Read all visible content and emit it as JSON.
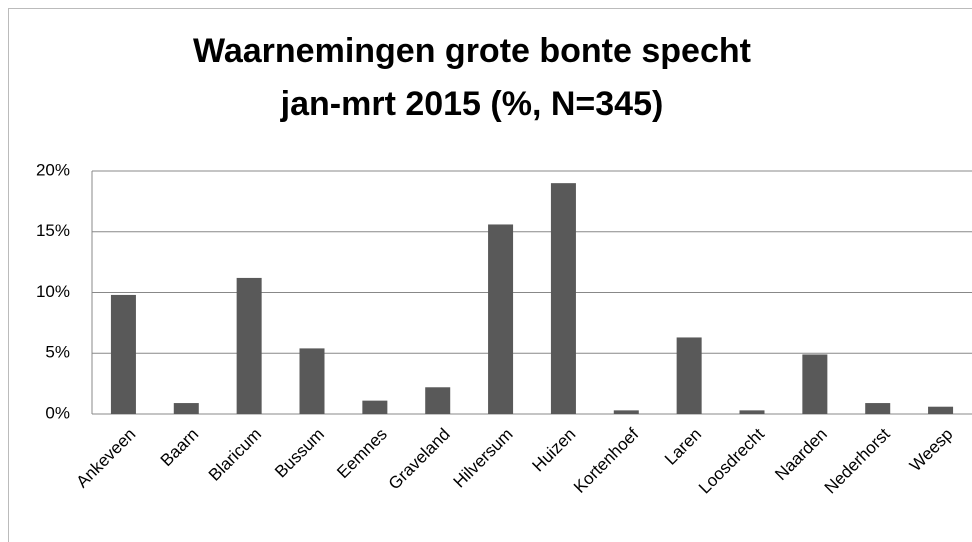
{
  "chart_data": {
    "type": "bar",
    "title": [
      "Waarnemingen grote bonte specht",
      "jan-mrt 2015 (%, N=345)"
    ],
    "categories": [
      "Ankeveen",
      "Baarn",
      "Blaricum",
      "Bussum",
      "Eemnes",
      "Graveland",
      "Hilversum",
      "Huizen",
      "Kortenhoef",
      "Laren",
      "Loosdrecht",
      "Naarden",
      "Nederhorst",
      "Weesp"
    ],
    "values": [
      9.8,
      0.9,
      11.2,
      5.4,
      1.1,
      2.2,
      15.6,
      19.0,
      0.3,
      6.3,
      0.3,
      4.9,
      0.9,
      0.6
    ],
    "color": "#595959",
    "ylim": [
      0,
      20
    ],
    "yticks": [
      {
        "value": 0,
        "label": "0%"
      },
      {
        "value": 5,
        "label": "5%"
      },
      {
        "value": 10,
        "label": "10%"
      },
      {
        "value": 15,
        "label": "15%"
      },
      {
        "value": 20,
        "label": "20%"
      }
    ],
    "grid": true
  }
}
